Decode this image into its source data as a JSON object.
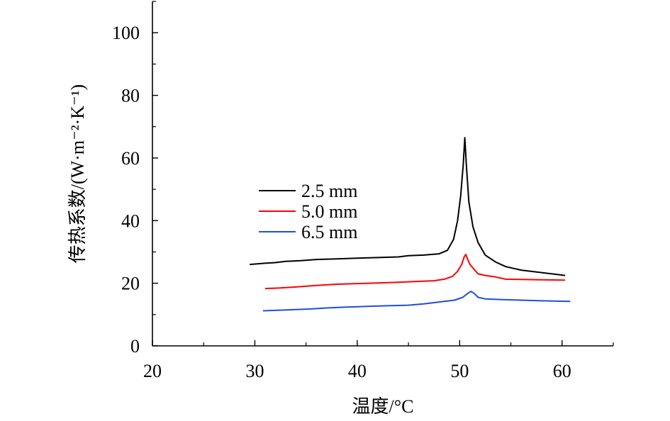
{
  "chart_data": {
    "type": "line",
    "title": "",
    "xlabel": "温度/°C",
    "ylabel": "传热系数/(W·m⁻²·K⁻¹)",
    "xlim": [
      20,
      65
    ],
    "ylim": [
      0,
      110
    ],
    "xticks": [
      20,
      30,
      40,
      50,
      60
    ],
    "yticks": [
      0,
      20,
      40,
      60,
      80,
      100
    ],
    "x_minor_ticks": [
      25,
      35,
      45,
      55,
      65
    ],
    "y_minor_ticks": [
      10,
      30,
      50,
      70,
      90,
      110
    ],
    "legend_position": "center-left",
    "series": [
      {
        "name": "2.5 mm",
        "color": "#000000",
        "points": [
          [
            29.5,
            26.0
          ],
          [
            31.0,
            26.4
          ],
          [
            32.0,
            26.6
          ],
          [
            33.0,
            27.0
          ],
          [
            34.5,
            27.2
          ],
          [
            36.0,
            27.6
          ],
          [
            38.0,
            27.8
          ],
          [
            40.0,
            28.0
          ],
          [
            42.0,
            28.2
          ],
          [
            44.0,
            28.4
          ],
          [
            45.0,
            28.8
          ],
          [
            46.5,
            29.0
          ],
          [
            48.0,
            29.4
          ],
          [
            48.8,
            30.5
          ],
          [
            49.4,
            34.0
          ],
          [
            49.8,
            40.0
          ],
          [
            50.1,
            48.0
          ],
          [
            50.35,
            58.0
          ],
          [
            50.5,
            66.5
          ],
          [
            50.65,
            58.0
          ],
          [
            50.9,
            46.0
          ],
          [
            51.3,
            38.0
          ],
          [
            51.8,
            33.0
          ],
          [
            52.5,
            29.0
          ],
          [
            53.5,
            26.8
          ],
          [
            54.5,
            25.3
          ],
          [
            56.0,
            24.2
          ],
          [
            57.5,
            23.6
          ],
          [
            59.0,
            23.0
          ],
          [
            60.3,
            22.5
          ]
        ]
      },
      {
        "name": "5.0 mm",
        "color": "#ff0000",
        "points": [
          [
            31.0,
            18.3
          ],
          [
            32.5,
            18.5
          ],
          [
            34.0,
            18.8
          ],
          [
            36.0,
            19.3
          ],
          [
            38.0,
            19.7
          ],
          [
            40.0,
            19.9
          ],
          [
            42.0,
            20.1
          ],
          [
            44.0,
            20.3
          ],
          [
            46.0,
            20.6
          ],
          [
            47.5,
            20.8
          ],
          [
            48.5,
            21.3
          ],
          [
            49.3,
            22.2
          ],
          [
            49.8,
            23.8
          ],
          [
            50.2,
            26.0
          ],
          [
            50.45,
            28.5
          ],
          [
            50.6,
            29.2
          ],
          [
            50.8,
            27.5
          ],
          [
            51.0,
            26.0
          ],
          [
            51.4,
            24.5
          ],
          [
            51.8,
            23.0
          ],
          [
            52.5,
            22.5
          ],
          [
            53.5,
            22.0
          ],
          [
            54.5,
            21.3
          ],
          [
            56.0,
            21.2
          ],
          [
            58.0,
            21.1
          ],
          [
            60.3,
            21.0
          ]
        ]
      },
      {
        "name": "6.5 mm",
        "color": "#1f4ed8",
        "points": [
          [
            30.8,
            11.2
          ],
          [
            32.5,
            11.4
          ],
          [
            34.0,
            11.6
          ],
          [
            35.5,
            11.8
          ],
          [
            37.0,
            12.1
          ],
          [
            39.0,
            12.4
          ],
          [
            41.0,
            12.6
          ],
          [
            43.0,
            12.8
          ],
          [
            45.0,
            13.0
          ],
          [
            46.5,
            13.4
          ],
          [
            48.0,
            14.0
          ],
          [
            49.5,
            14.6
          ],
          [
            50.3,
            15.5
          ],
          [
            50.8,
            16.8
          ],
          [
            51.1,
            17.4
          ],
          [
            51.4,
            16.8
          ],
          [
            51.8,
            15.5
          ],
          [
            52.5,
            15.0
          ],
          [
            54.0,
            14.8
          ],
          [
            56.0,
            14.6
          ],
          [
            58.0,
            14.4
          ],
          [
            60.8,
            14.2
          ]
        ]
      }
    ]
  }
}
